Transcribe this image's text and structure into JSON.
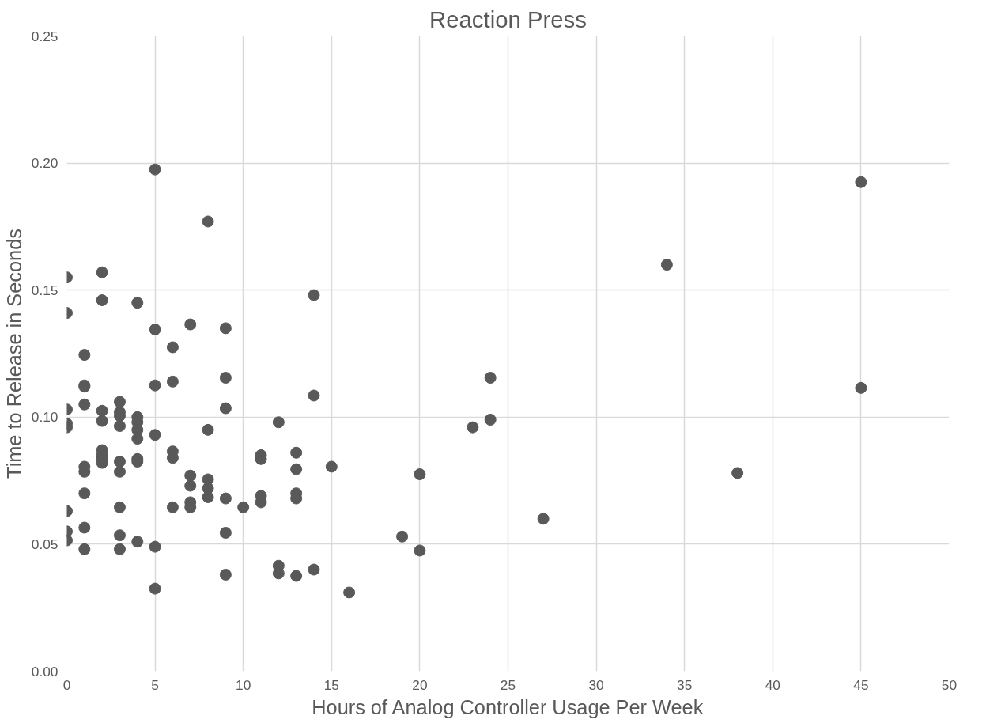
{
  "chart_data": {
    "type": "scatter",
    "title": "Reaction Press",
    "xlabel": "Hours of Analog Controller Usage Per Week",
    "ylabel": "Time to Release in Seconds",
    "xlim": [
      0,
      50
    ],
    "xticks": [
      0,
      5,
      10,
      15,
      20,
      25,
      30,
      35,
      40,
      45,
      50
    ],
    "ylim": [
      0,
      0.25
    ],
    "yticks": [
      {
        "value": 0,
        "label": "0.00"
      },
      {
        "value": 0.05,
        "label": "0.05"
      },
      {
        "value": 0.1,
        "label": "0.10"
      },
      {
        "value": 0.15,
        "label": "0.15"
      },
      {
        "value": 0.2,
        "label": "0.20"
      },
      {
        "value": 0.25,
        "label": "0.25"
      }
    ],
    "grid": true,
    "marker": "circle",
    "series": [
      {
        "color": "#595959",
        "x": [
          0,
          0,
          0,
          0,
          0,
          0,
          0,
          0,
          1,
          1,
          1,
          1,
          1,
          1,
          1,
          1,
          1,
          2,
          2,
          2,
          2,
          2,
          2,
          2,
          2,
          3,
          3,
          3,
          3,
          3,
          3,
          3,
          3,
          3,
          4,
          4,
          4,
          4,
          4,
          4,
          4,
          4,
          5,
          5,
          5,
          5,
          5,
          5,
          6,
          6,
          6,
          6,
          6,
          7,
          7,
          7,
          7,
          7,
          8,
          8,
          8,
          8,
          8,
          9,
          9,
          9,
          9,
          9,
          9,
          10,
          11,
          11,
          11,
          11,
          12,
          12,
          12,
          13,
          13,
          13,
          13,
          13,
          14,
          14,
          14,
          15,
          16,
          19,
          20,
          20,
          23,
          24,
          24,
          27,
          34,
          38,
          45,
          45
        ],
        "values": [
          0.155,
          0.141,
          0.103,
          0.0975,
          0.096,
          0.063,
          0.055,
          0.0515,
          0.1245,
          0.1125,
          0.112,
          0.105,
          0.0805,
          0.0785,
          0.07,
          0.0565,
          0.048,
          0.157,
          0.146,
          0.1025,
          0.0985,
          0.087,
          0.085,
          0.0835,
          0.082,
          0.106,
          0.102,
          0.1005,
          0.0965,
          0.0825,
          0.0785,
          0.0645,
          0.0535,
          0.048,
          0.145,
          0.1,
          0.098,
          0.095,
          0.0915,
          0.0835,
          0.0825,
          0.051,
          0.1975,
          0.1345,
          0.1125,
          0.093,
          0.049,
          0.0325,
          0.1275,
          0.114,
          0.0865,
          0.084,
          0.0645,
          0.1365,
          0.077,
          0.073,
          0.0665,
          0.0645,
          0.177,
          0.095,
          0.0755,
          0.072,
          0.0685,
          0.135,
          0.1155,
          0.1035,
          0.068,
          0.0545,
          0.038,
          0.0645,
          0.085,
          0.0835,
          0.069,
          0.0665,
          0.098,
          0.0415,
          0.0385,
          0.086,
          0.0795,
          0.07,
          0.068,
          0.0375,
          0.148,
          0.1085,
          0.04,
          0.0805,
          0.031,
          0.053,
          0.0775,
          0.0475,
          0.096,
          0.1155,
          0.099,
          0.06,
          0.16,
          0.078,
          0.1925,
          0.1115
        ]
      }
    ]
  }
}
